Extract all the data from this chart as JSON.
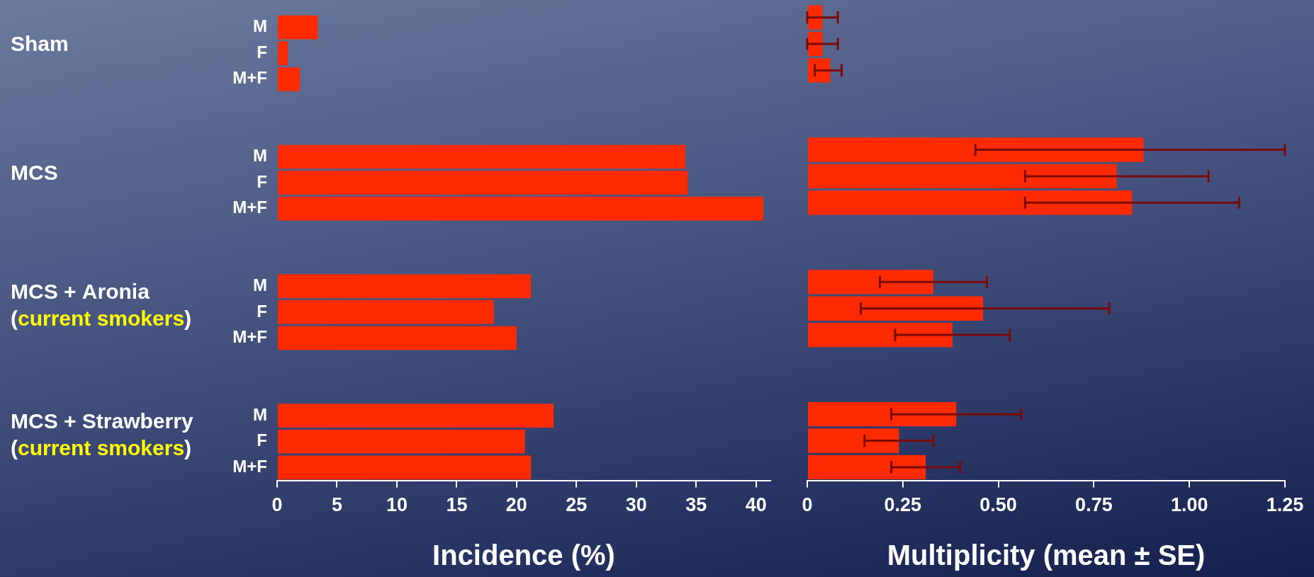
{
  "chart_data": [
    {
      "type": "bar",
      "orientation": "horizontal",
      "xlabel": "Incidence (%)",
      "categories": [
        "M",
        "F",
        "M+F",
        null,
        null,
        "M",
        "F",
        "M+F",
        null,
        null,
        "M",
        "F",
        "M+F",
        null,
        null,
        "M",
        "F",
        "M+F"
      ],
      "values": [
        3.4,
        0.9,
        1.9,
        null,
        null,
        34.1,
        34.3,
        40.6,
        null,
        null,
        21.2,
        18.1,
        20.0,
        null,
        null,
        23.1,
        20.7,
        21.2
      ],
      "color": "#ff2a00",
      "xlim": [
        0,
        41.2
      ],
      "xticks": [
        0,
        5,
        10,
        15,
        20,
        25,
        30,
        35,
        40
      ],
      "grid": false,
      "annotations": [
        "Sham",
        "MCS",
        "MCS + Aronia\n(current smokers)",
        "MCS + Strawberry\n(current smokers)"
      ]
    },
    {
      "type": "bar",
      "orientation": "horizontal",
      "xlabel": "Multiplicity (mean ± SE)",
      "categories": [
        null,
        null,
        null,
        null,
        null,
        null,
        null,
        null,
        null,
        null,
        null,
        null,
        null,
        null,
        null,
        null,
        null,
        null
      ],
      "values": [
        0.04,
        0.04,
        0.06,
        null,
        null,
        0.88,
        0.81,
        0.85,
        null,
        null,
        0.33,
        0.46,
        0.38,
        null,
        null,
        0.39,
        0.24,
        0.31
      ],
      "errors": [
        [
          0,
          0.08
        ],
        [
          0,
          0.08
        ],
        [
          0.02,
          0.09
        ],
        null,
        null,
        [
          0.44,
          1.25
        ],
        [
          0.57,
          1.05
        ],
        [
          0.57,
          1.13
        ],
        null,
        null,
        [
          0.19,
          0.47
        ],
        [
          0.14,
          0.79
        ],
        [
          0.23,
          0.53
        ],
        null,
        null,
        [
          0.22,
          0.56
        ],
        [
          0.15,
          0.33
        ],
        [
          0.22,
          0.4
        ]
      ],
      "color": "#ff2a00",
      "xlim": [
        0,
        1.25
      ],
      "xticks": [
        0,
        0.25,
        {
          "value": 0.5,
          "label": "0.50"
        },
        0.75,
        {
          "value": 1,
          "label": "1.00"
        },
        1.25
      ],
      "grid": false,
      "tick_labels": "x"
    }
  ]
}
